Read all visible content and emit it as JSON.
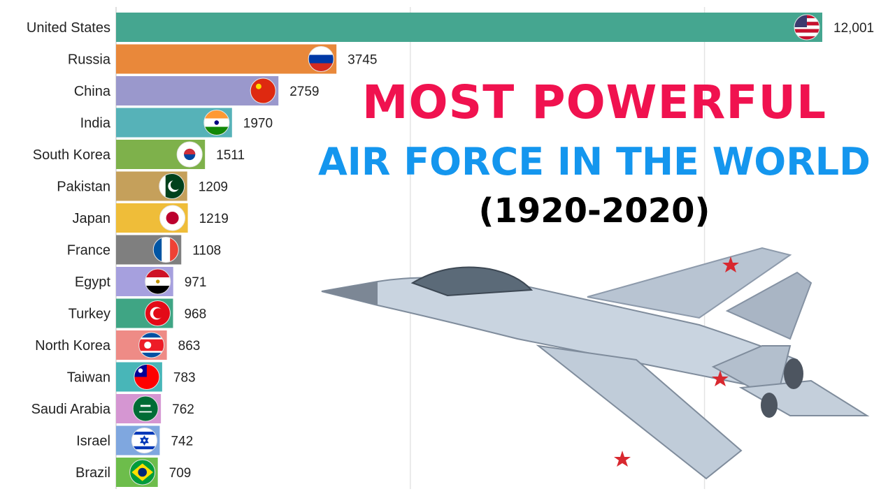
{
  "title": {
    "line1": "MOST POWERFUL",
    "line2": "AIR FORCE IN THE WORLD",
    "line3": "(1920-2020)"
  },
  "chart_data": {
    "type": "bar",
    "orientation": "horizontal",
    "categories": [
      "United States",
      "Russia",
      "China",
      "India",
      "South Korea",
      "Pakistan",
      "Japan",
      "France",
      "Egypt",
      "Turkey",
      "North Korea",
      "Taiwan",
      "Saudi Arabia",
      "Israel",
      "Brazil"
    ],
    "values": [
      12001,
      3745,
      2759,
      1970,
      1511,
      1209,
      1219,
      1108,
      971,
      968,
      863,
      783,
      762,
      742,
      709
    ],
    "value_labels": [
      "12,001",
      "3745",
      "2759",
      "1970",
      "1511",
      "1209",
      "1219",
      "1108",
      "971",
      "968",
      "863",
      "783",
      "762",
      "742",
      "709"
    ],
    "colors": [
      "#45a690",
      "#e9883a",
      "#9a98cc",
      "#56b2b8",
      "#7eb14b",
      "#c5a05b",
      "#efbd39",
      "#7f7f7f",
      "#a6a0de",
      "#3fa584",
      "#ee8b86",
      "#48b6b8",
      "#d596d2",
      "#7fa7df",
      "#6dbd4b"
    ],
    "flags": [
      "us-flag",
      "russia-flag",
      "china-flag",
      "india-flag",
      "south-korea-flag",
      "pakistan-flag",
      "japan-flag",
      "france-flag",
      "egypt-flag",
      "turkey-flag",
      "north-korea-flag",
      "taiwan-flag",
      "saudi-arabia-flag",
      "israel-flag",
      "brazil-flag"
    ],
    "gridlines": true,
    "legend": "none"
  },
  "image": {
    "name": "fighter-jet-image"
  }
}
